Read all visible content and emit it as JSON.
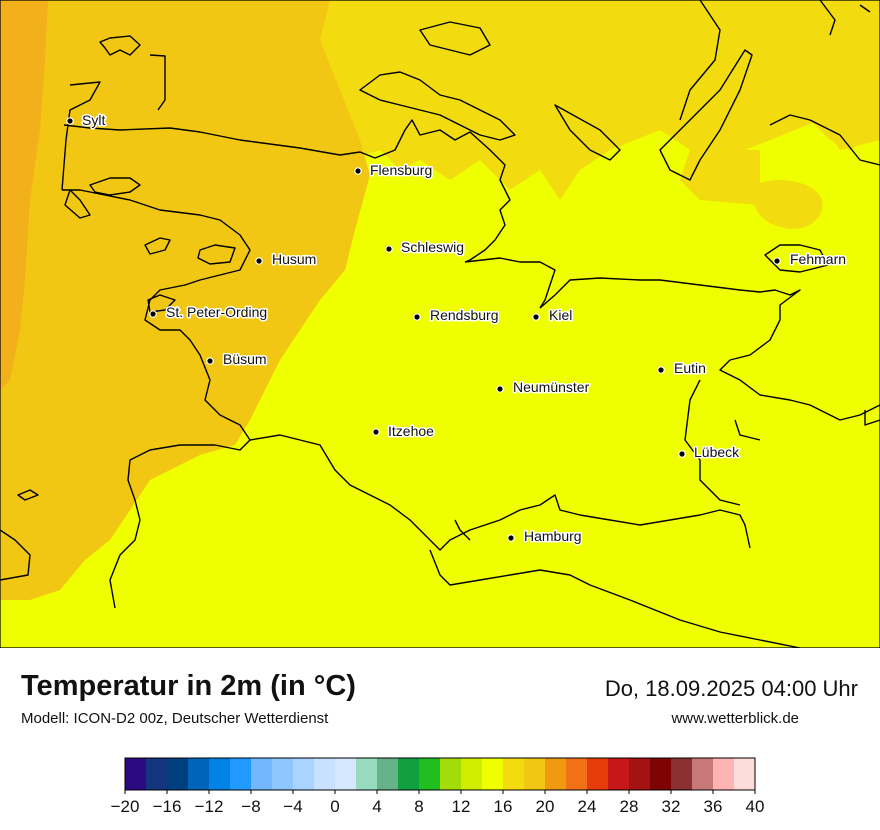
{
  "map": {
    "title": "Temperatur in 2m (in °C)",
    "model": "Modell: ICON-D2 00z, Deutscher Wetterdienst",
    "datetime": "Do, 18.09.2025 04:00 Uhr",
    "source": "www.wetterblick.de",
    "cities": [
      {
        "name": "Sylt"
      },
      {
        "name": "Flensburg"
      },
      {
        "name": "Schleswig"
      },
      {
        "name": "Husum"
      },
      {
        "name": "Fehmarn"
      },
      {
        "name": "St. Peter-Ording"
      },
      {
        "name": "Rendsburg"
      },
      {
        "name": "Kiel"
      },
      {
        "name": "Büsum"
      },
      {
        "name": "Eutin"
      },
      {
        "name": "Neumünster"
      },
      {
        "name": "Itzehoe"
      },
      {
        "name": "Lübeck"
      },
      {
        "name": "Hamburg"
      }
    ],
    "field_colors": {
      "west_coast": "#f2c713",
      "north": "#f2db0e",
      "main": "#f0ff00",
      "coastline": "#000000"
    }
  },
  "legend": {
    "unit": "°C",
    "min": -20,
    "max": 40,
    "step": 2,
    "tick_labels": [
      "−20",
      "−16",
      "−12",
      "−8",
      "−4",
      "0",
      "4",
      "8",
      "12",
      "16",
      "20",
      "24",
      "28",
      "32",
      "36",
      "40"
    ],
    "colors": [
      "#2b0a82",
      "#12357d",
      "#003f7f",
      "#0064bb",
      "#0083e6",
      "#2299ff",
      "#72b7ff",
      "#8ec6ff",
      "#aad3ff",
      "#c7e1ff",
      "#d6e8ff",
      "#97dcbe",
      "#66b28a",
      "#10a040",
      "#20be20",
      "#a4dc0a",
      "#d0ec00",
      "#f0ff00",
      "#f2db0e",
      "#f2c713",
      "#f09a12",
      "#f07116",
      "#e83b0c",
      "#c61818",
      "#a31313",
      "#7e0303",
      "#8a3030",
      "#c87878",
      "#ffb4b4",
      "#ffdcdc"
    ]
  }
}
